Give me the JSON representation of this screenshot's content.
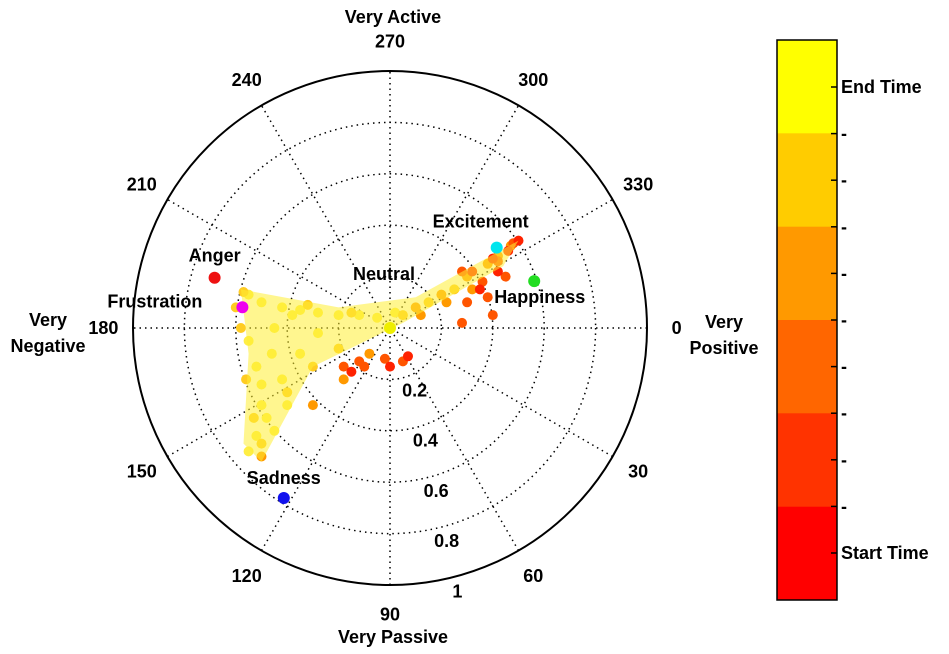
{
  "chart_data": {
    "type": "scatter",
    "coordinate_system": "polar",
    "angle_ticks": [
      "0",
      "30",
      "60",
      "90",
      "120",
      "150",
      "180",
      "210",
      "240",
      "270",
      "300",
      "330"
    ],
    "radial_ticks": [
      "0.2",
      "0.4",
      "0.6",
      "0.8",
      "1"
    ],
    "rlim": [
      0,
      1
    ],
    "grid": true,
    "axis_labels": {
      "right": [
        "Very",
        "Positive"
      ],
      "left": [
        "Very",
        "Negative"
      ],
      "top": "Very Active",
      "bottom": "Very Passive"
    },
    "reference_points": [
      {
        "label": "Excitement",
        "theta": 323,
        "r": 0.52,
        "color": "#00e5ee"
      },
      {
        "label": "Happiness",
        "theta": 342,
        "r": 0.59,
        "color": "#22dd22"
      },
      {
        "label": "Anger",
        "theta": 196,
        "r": 0.71,
        "color": "#ee1111"
      },
      {
        "label": "Frustration",
        "theta": 188,
        "r": 0.58,
        "color": "#ee00ee"
      },
      {
        "label": "Sadness",
        "theta": 122,
        "r": 0.78,
        "color": "#1111ee"
      },
      {
        "label": "Neutral",
        "theta": 0,
        "r": 0.0,
        "color": "#eeee00"
      }
    ],
    "trajectory_clusters": [
      {
        "name": "yellow",
        "color": "#ffee44",
        "points": [
          [
            -0.55,
            -0.13
          ],
          [
            -0.5,
            -0.1
          ],
          [
            -0.42,
            -0.08
          ],
          [
            -0.35,
            -0.07
          ],
          [
            -0.28,
            -0.06
          ],
          [
            -0.2,
            -0.05
          ],
          [
            -0.12,
            -0.05
          ],
          [
            -0.05,
            -0.04
          ],
          [
            0.02,
            -0.06
          ],
          [
            -0.55,
            0.05
          ],
          [
            -0.52,
            0.15
          ],
          [
            -0.5,
            0.3
          ],
          [
            -0.52,
            0.42
          ],
          [
            -0.55,
            0.48
          ],
          [
            -0.48,
            0.35
          ],
          [
            -0.42,
            0.2
          ],
          [
            -0.35,
            0.1
          ],
          [
            -0.28,
            0.02
          ],
          [
            -0.45,
            0.0
          ],
          [
            -0.38,
            -0.05
          ],
          [
            -0.46,
            0.1
          ],
          [
            -0.4,
            0.3
          ],
          [
            -0.5,
            0.22
          ],
          [
            -0.45,
            0.4
          ]
        ]
      },
      {
        "name": "gold",
        "color": "#ffcc22",
        "points": [
          [
            -0.57,
            -0.14
          ],
          [
            -0.32,
            -0.09
          ],
          [
            -0.15,
            -0.06
          ],
          [
            0.05,
            -0.05
          ],
          [
            0.15,
            -0.1
          ],
          [
            0.25,
            -0.15
          ],
          [
            -0.53,
            0.35
          ],
          [
            -0.5,
            0.45
          ],
          [
            -0.4,
            0.25
          ],
          [
            -0.3,
            0.15
          ],
          [
            -0.2,
            0.08
          ],
          [
            -0.58,
            0.0
          ],
          [
            -0.56,
            0.2
          ],
          [
            0.0,
            0.0
          ],
          [
            -0.6,
            -0.08
          ]
        ]
      },
      {
        "name": "orange",
        "color": "#ff9900",
        "points": [
          [
            0.1,
            -0.08
          ],
          [
            0.2,
            -0.13
          ],
          [
            0.3,
            -0.2
          ],
          [
            0.38,
            -0.25
          ],
          [
            0.42,
            -0.28
          ],
          [
            0.47,
            -0.32
          ],
          [
            -0.5,
            0.5
          ],
          [
            -0.3,
            0.3
          ],
          [
            -0.18,
            0.2
          ],
          [
            -0.08,
            0.1
          ],
          [
            0.12,
            -0.05
          ],
          [
            0.22,
            -0.1
          ],
          [
            0.32,
            -0.15
          ]
        ]
      },
      {
        "name": "red-orange",
        "color": "#ff5500",
        "points": [
          [
            0.28,
            -0.22
          ],
          [
            0.36,
            -0.18
          ],
          [
            0.42,
            -0.26
          ],
          [
            0.48,
            -0.33
          ],
          [
            0.3,
            -0.1
          ],
          [
            0.38,
            -0.12
          ],
          [
            0.45,
            -0.2
          ],
          [
            0.4,
            -0.05
          ],
          [
            0.28,
            -0.02
          ],
          [
            -0.1,
            0.15
          ],
          [
            -0.02,
            0.12
          ],
          [
            0.05,
            0.13
          ],
          [
            -0.12,
            0.13
          ],
          [
            -0.18,
            0.15
          ]
        ]
      },
      {
        "name": "red",
        "color": "#ff2200",
        "points": [
          [
            0.32,
            -0.22
          ],
          [
            0.4,
            -0.27
          ],
          [
            0.46,
            -0.3
          ],
          [
            0.5,
            -0.34
          ],
          [
            0.35,
            -0.15
          ],
          [
            0.42,
            -0.22
          ],
          [
            -0.15,
            0.17
          ],
          [
            0.0,
            0.15
          ],
          [
            0.07,
            0.11
          ]
        ]
      }
    ],
    "colorbar": {
      "colors": [
        "#ffff00",
        "#ffcc00",
        "#ff9900",
        "#ff6600",
        "#ff3300",
        "#ff0000"
      ],
      "tick_labels": [
        "End Time",
        "-",
        "-",
        "-",
        "-",
        "-",
        "-",
        "-",
        "-",
        "-",
        "Start Time"
      ]
    }
  }
}
